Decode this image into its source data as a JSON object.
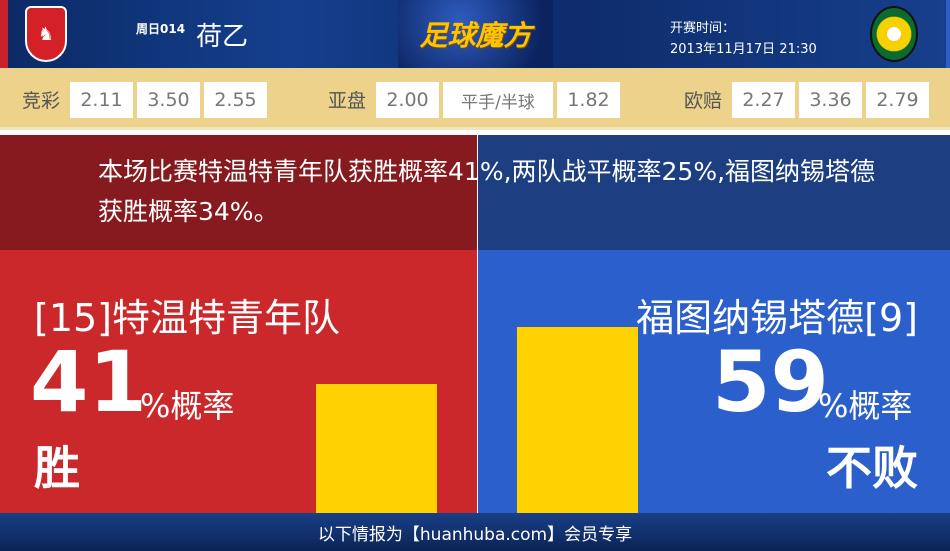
{
  "header": {
    "match_no": "周日014",
    "league": "荷乙",
    "brand": "足球魔方",
    "kickoff_label": "开赛时间：",
    "kickoff_time": "2013年11月17日 21:30",
    "home_crest": "F.C. Twente crest",
    "away_crest": "Fortuna Sittard crest"
  },
  "odds": {
    "jingcai": {
      "label": "竞彩",
      "values": [
        "2.11",
        "3.50",
        "2.55"
      ]
    },
    "asian": {
      "label": "亚盘",
      "values": [
        "2.00",
        "平手/半球",
        "1.82"
      ]
    },
    "euro": {
      "label": "欧赔",
      "values": [
        "2.27",
        "3.36",
        "2.79"
      ]
    }
  },
  "summary": "本场比赛特温特青年队获胜概率41%,两队战平概率25%,福图纳锡塔德获胜概率34%。",
  "home": {
    "team": "[15]特温特青年队",
    "percent": "41",
    "percent_suffix": "%概率",
    "result": "胜",
    "probability": 41,
    "color": "#cb282b"
  },
  "away": {
    "team": "福图纳锡塔德[9]",
    "percent": "59",
    "percent_suffix": "%概率",
    "result": "不败",
    "probability": 59,
    "color": "#2b5fcb"
  },
  "footer": "以下情报为【huanhuba.com】会员专享",
  "colors": {
    "bar": "#ffd200",
    "odds_bg": "#ecd28a"
  }
}
